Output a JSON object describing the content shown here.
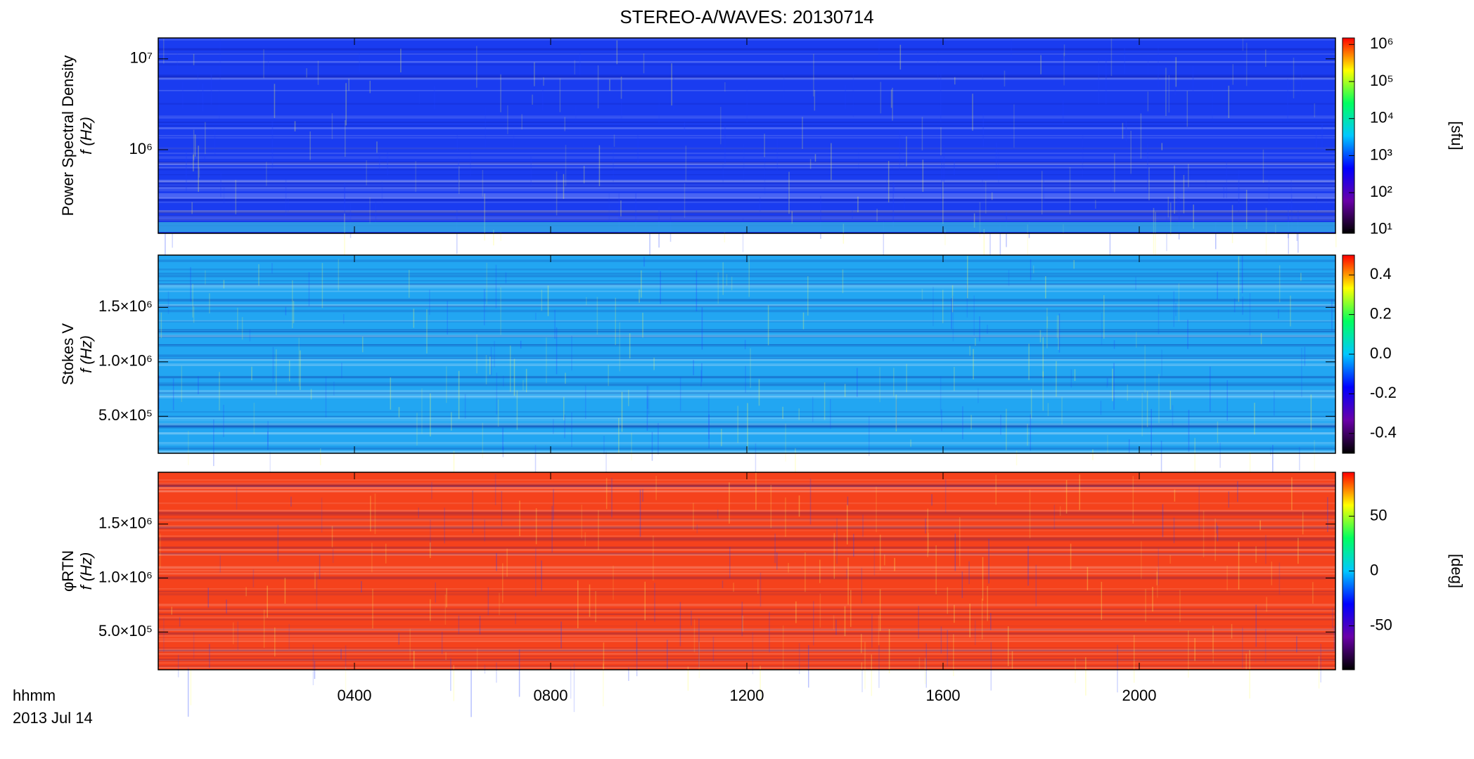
{
  "chart_data": [
    {
      "type": "heatmap",
      "title": "STEREO-A/WAVES: 20130714",
      "ylabel": [
        "Power Spectral Density",
        "f (Hz)"
      ],
      "ylog": true,
      "ylim": [
        120000,
        17000000
      ],
      "yticks": [
        {
          "value": 1000000,
          "label": "10⁶"
        },
        {
          "value": 10000000,
          "label": "10⁷"
        }
      ],
      "zlog": true,
      "zlim": [
        8,
        1500000
      ],
      "zticks": [
        {
          "value": 10,
          "label": "10¹"
        },
        {
          "value": 100,
          "label": "10²"
        },
        {
          "value": 1000,
          "label": "10³"
        },
        {
          "value": 10000,
          "label": "10⁴"
        },
        {
          "value": 100000,
          "label": "10⁵"
        },
        {
          "value": 1000000,
          "label": "10⁶"
        }
      ],
      "zlabel": "[sfu]",
      "fill_color": "#1a3cf0"
    },
    {
      "type": "heatmap",
      "ylabel": [
        "Stokes V",
        "f (Hz)"
      ],
      "ylog": false,
      "ylim": [
        160000,
        1980000
      ],
      "yticks": [
        {
          "value": 500000,
          "label": "5.0×10⁵"
        },
        {
          "value": 1000000,
          "label": "1.0×10⁶"
        },
        {
          "value": 1500000,
          "label": "1.5×10⁶"
        }
      ],
      "zlog": false,
      "zlim": [
        -0.5,
        0.5
      ],
      "zticks": [
        -0.4,
        -0.2,
        {
          "value": 0,
          "label": "0.0"
        },
        0.2,
        0.4
      ],
      "fill_color": "#22a6f2"
    },
    {
      "type": "heatmap",
      "ylabel": [
        "φRTN",
        "f (Hz)"
      ],
      "ylog": false,
      "ylim": [
        150000,
        1980000
      ],
      "yticks": [
        {
          "value": 500000,
          "label": "5.0×10⁵"
        },
        {
          "value": 1000000,
          "label": "1.0×10⁶"
        },
        {
          "value": 1500000,
          "label": "1.5×10⁶"
        }
      ],
      "zlog": false,
      "zlim": [
        -90,
        90
      ],
      "zticks": [
        -50,
        0,
        50
      ],
      "zlabel": "[deg]",
      "fill_color": "#f5421c",
      "xlim": [
        0,
        24
      ],
      "xticks": [
        {
          "value": 4,
          "label": "0400"
        },
        {
          "value": 8,
          "label": "0800"
        },
        {
          "value": 12,
          "label": "1200"
        },
        {
          "value": 16,
          "label": "1600"
        },
        {
          "value": 20,
          "label": "2000"
        }
      ],
      "xlabel": [
        "hhmm",
        "2013 Jul 14"
      ],
      "colormap": [
        "#000000",
        "#6a00a8",
        "#0000ff",
        "#00c8ff",
        "#00ff60",
        "#ffff00",
        "#ff0000"
      ]
    }
  ]
}
